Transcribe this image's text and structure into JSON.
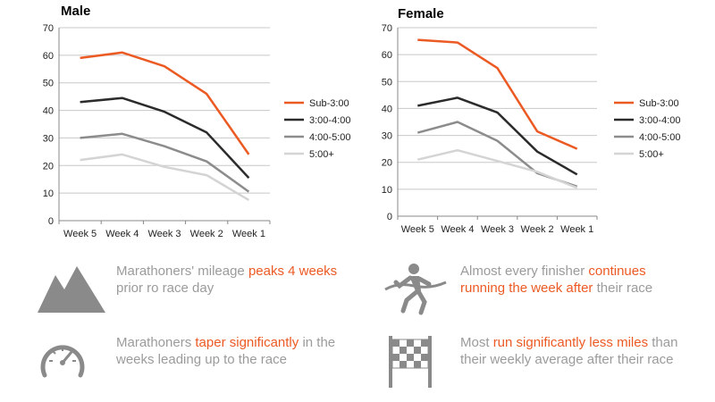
{
  "colors": {
    "accent": "#ec5a24",
    "text_gray": "#9b9b9b",
    "icon_gray": "#8a8a8a"
  },
  "chart_data": [
    {
      "type": "line",
      "title": "Male",
      "categories": [
        "Week 5",
        "Week 4",
        "Week 3",
        "Week 2",
        "Week 1"
      ],
      "ylim": [
        0,
        70
      ],
      "yticks": [
        0,
        10,
        20,
        30,
        40,
        50,
        60,
        70
      ],
      "grid": true,
      "legend": "right",
      "series": [
        {
          "name": "Sub-3:00",
          "color": "#ec5a24",
          "values": [
            59,
            61,
            56,
            46,
            24
          ]
        },
        {
          "name": "3:00-4:00",
          "color": "#2b2b2b",
          "values": [
            43,
            44.5,
            39.5,
            32,
            15.5
          ]
        },
        {
          "name": "4:00-5:00",
          "color": "#8c8c8c",
          "values": [
            30,
            31.5,
            27,
            21.5,
            10.5
          ]
        },
        {
          "name": "5:00+",
          "color": "#d4d4d4",
          "values": [
            22,
            24,
            19.5,
            16.5,
            7.5
          ]
        }
      ]
    },
    {
      "type": "line",
      "title": "Female",
      "categories": [
        "Week 5",
        "Week 4",
        "Week 3",
        "Week 2",
        "Week 1"
      ],
      "ylim": [
        0,
        70
      ],
      "yticks": [
        0,
        10,
        20,
        30,
        40,
        50,
        60,
        70
      ],
      "grid": true,
      "legend": "right",
      "series": [
        {
          "name": "Sub-3:00",
          "color": "#ec5a24",
          "values": [
            65.5,
            64.5,
            55,
            31.5,
            25
          ]
        },
        {
          "name": "3:00-4:00",
          "color": "#2b2b2b",
          "values": [
            41,
            44,
            38.5,
            24,
            15.5
          ]
        },
        {
          "name": "4:00-5:00",
          "color": "#8c8c8c",
          "values": [
            31,
            35,
            28,
            16,
            11
          ]
        },
        {
          "name": "5:00+",
          "color": "#d4d4d4",
          "values": [
            21,
            24.5,
            20.5,
            16.5,
            10.5
          ]
        }
      ]
    }
  ],
  "facts": [
    {
      "icon": "mountains-icon",
      "parts": [
        {
          "text": "Marathoners' mileage ",
          "hl": false
        },
        {
          "text": "peaks 4 weeks",
          "hl": true
        },
        {
          "text": " prior ro race day",
          "hl": false
        }
      ]
    },
    {
      "icon": "runner-finish-icon",
      "parts": [
        {
          "text": "Almost every finisher ",
          "hl": false
        },
        {
          "text": "continues running the week after",
          "hl": true
        },
        {
          "text": " their race",
          "hl": false
        }
      ]
    },
    {
      "icon": "speedometer-icon",
      "parts": [
        {
          "text": "Marathoners ",
          "hl": false
        },
        {
          "text": "taper significantly",
          "hl": true
        },
        {
          "text": " in the weeks leading up to the race",
          "hl": false
        }
      ]
    },
    {
      "icon": "checkered-flag-icon",
      "parts": [
        {
          "text": "Most ",
          "hl": false
        },
        {
          "text": "run significantly less miles",
          "hl": true
        },
        {
          "text": " than their weekly average after their race",
          "hl": false
        }
      ]
    }
  ]
}
